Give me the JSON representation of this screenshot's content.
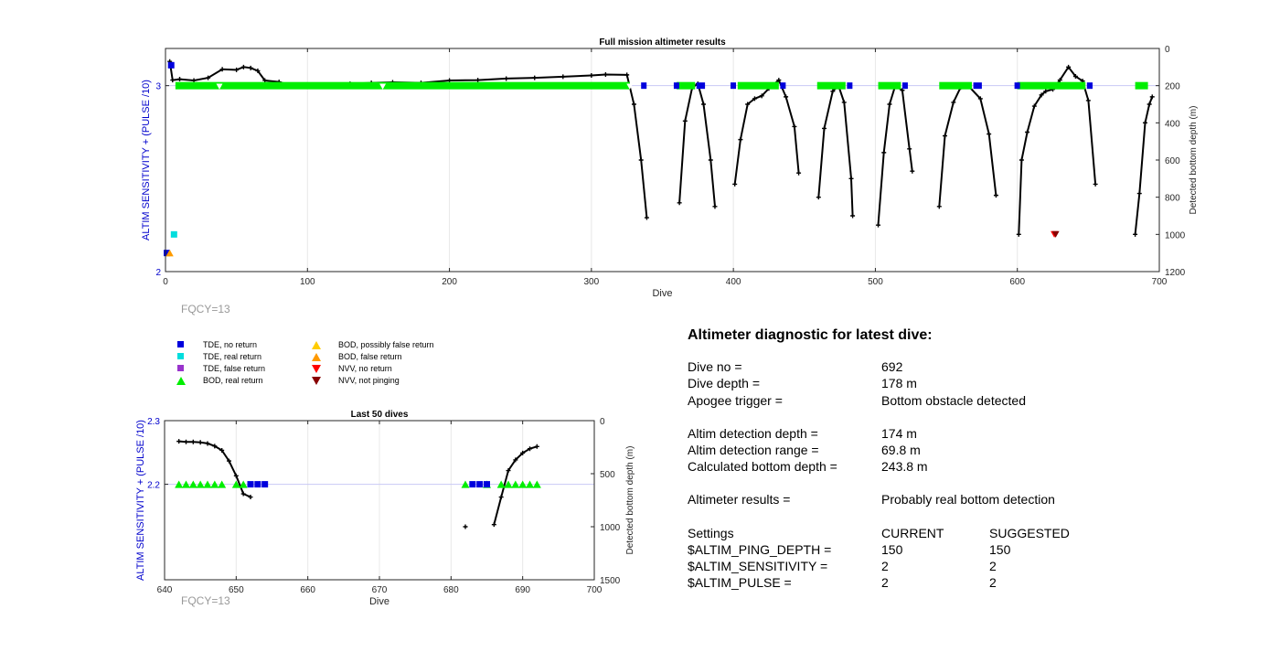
{
  "colors": {
    "tde_no_return": "#0000dd",
    "tde_real_return": "#00dddd",
    "tde_false_return": "#9933cc",
    "bod_real_return": "#00ee00",
    "bod_possibly_false": "#ffcc00",
    "bod_false_return": "#ff9900",
    "nvv_no_return": "#ff0000",
    "nvv_not_pinging": "#880000",
    "left_axis": "#0000cc",
    "fqcy": "#999999"
  },
  "fqcy_label": "FQCY=13",
  "legend": [
    {
      "label": "TDE, no return",
      "shape": "square",
      "color_key": "tde_no_return"
    },
    {
      "label": "TDE, real return",
      "shape": "square",
      "color_key": "tde_real_return"
    },
    {
      "label": "TDE, false return",
      "shape": "square",
      "color_key": "tde_false_return"
    },
    {
      "label": "BOD, real return",
      "shape": "triangle-up",
      "color_key": "bod_real_return"
    },
    {
      "label": "BOD, possibly false return",
      "shape": "triangle-up",
      "color_key": "bod_possibly_false"
    },
    {
      "label": "BOD, false return",
      "shape": "triangle-up",
      "color_key": "bod_false_return"
    },
    {
      "label": "NVV, no return",
      "shape": "triangle-down",
      "color_key": "nvv_no_return"
    },
    {
      "label": "NVV, not pinging",
      "shape": "triangle-down",
      "color_key": "nvv_not_pinging"
    }
  ],
  "diagnostic": {
    "title": "Altimeter diagnostic for latest dive:",
    "dive_no_label": "Dive no =",
    "dive_no": "692",
    "dive_depth_label": "Dive depth =",
    "dive_depth": "178 m",
    "apogee_label": "Apogee trigger =",
    "apogee": "Bottom obstacle detected",
    "altim_depth_label": "Altim detection depth =",
    "altim_depth": "174 m",
    "altim_range_label": "Altim detection range =",
    "altim_range": "69.8 m",
    "calc_depth_label": "Calculated bottom depth =",
    "calc_depth": "243.8 m",
    "results_label": "Altimeter results =",
    "results": "Probably real bottom detection",
    "settings_label": "Settings",
    "current_label": "CURRENT",
    "suggested_label": "SUGGESTED",
    "settings": [
      {
        "name": "$ALTIM_PING_DEPTH =",
        "current": "150",
        "suggested": "150"
      },
      {
        "name": "$ALTIM_SENSITIVITY =",
        "current": "2",
        "suggested": "2"
      },
      {
        "name": "$ALTIM_PULSE =",
        "current": "2",
        "suggested": "2"
      }
    ]
  },
  "chart_data": [
    {
      "type": "scatter",
      "title": "Full mission altimeter results",
      "xlabel": "Dive",
      "ylabel": "ALTIM SENSITIVITY + (PULSE /10)",
      "y2label": "Detected bottom depth (m)",
      "xlim": [
        0,
        700
      ],
      "ylim": [
        2,
        3.2
      ],
      "y2lim": [
        1200,
        0
      ],
      "xticks": [
        0,
        100,
        200,
        300,
        400,
        500,
        600,
        700
      ],
      "yticks": [
        2,
        3
      ],
      "y2ticks": [
        0,
        200,
        400,
        600,
        800,
        1000,
        1200
      ],
      "reference_line_y": 3,
      "bod_real_runs": [
        [
          7,
          327
        ],
        [
          360,
          373
        ],
        [
          403,
          432
        ],
        [
          459,
          479
        ],
        [
          502,
          518
        ],
        [
          545,
          568
        ],
        [
          600,
          648
        ],
        [
          683,
          692
        ]
      ],
      "bod_gaps": [
        38,
        153,
        327
      ],
      "tde_no_return_runs": [
        [
          335,
          338
        ],
        [
          358,
          360
        ],
        [
          374,
          380
        ],
        [
          398,
          401
        ],
        [
          433,
          436
        ],
        [
          480,
          483
        ],
        [
          519,
          522
        ],
        [
          569,
          575
        ],
        [
          598,
          600
        ],
        [
          649,
          653
        ]
      ],
      "special_markers": [
        {
          "category": "tde_no_return",
          "x": 4,
          "y": 3.11
        },
        {
          "category": "tde_no_return",
          "x": 1,
          "y": 2.1
        },
        {
          "category": "tde_real_return",
          "x": 6,
          "y": 2.2
        },
        {
          "category": "bod_possibly_false",
          "x": 3,
          "y": 2.1
        },
        {
          "category": "bod_false_return",
          "x": 3,
          "y": 2.1
        },
        {
          "category": "nvv_no_return",
          "x": 626,
          "y": 2.2
        },
        {
          "category": "nvv_not_pinging",
          "x": 627,
          "y": 2.2
        }
      ],
      "depth_segments": [
        [
          [
            3,
            70
          ],
          [
            5,
            170
          ],
          [
            10,
            165
          ],
          [
            20,
            172
          ],
          [
            30,
            158
          ],
          [
            40,
            112
          ],
          [
            50,
            115
          ],
          [
            55,
            100
          ],
          [
            60,
            105
          ],
          [
            65,
            120
          ],
          [
            70,
            172
          ],
          [
            80,
            180
          ],
          [
            90,
            202
          ],
          [
            100,
            198
          ],
          [
            115,
            195
          ],
          [
            130,
            190
          ],
          [
            145,
            185
          ],
          [
            160,
            182
          ],
          [
            180,
            185
          ],
          [
            200,
            172
          ],
          [
            220,
            170
          ],
          [
            240,
            162
          ],
          [
            260,
            158
          ],
          [
            280,
            152
          ],
          [
            300,
            145
          ],
          [
            310,
            140
          ],
          [
            325,
            142
          ],
          [
            330,
            300
          ],
          [
            335,
            600
          ],
          [
            339,
            910
          ]
        ],
        [
          [
            362,
            830
          ],
          [
            366,
            390
          ],
          [
            371,
            210
          ],
          [
            375,
            190
          ],
          [
            379,
            300
          ],
          [
            384,
            600
          ],
          [
            387,
            850
          ]
        ],
        [
          [
            401,
            730
          ],
          [
            405,
            490
          ],
          [
            410,
            300
          ],
          [
            415,
            270
          ],
          [
            420,
            255
          ],
          [
            425,
            215
          ],
          [
            432,
            170
          ],
          [
            437,
            260
          ],
          [
            443,
            420
          ],
          [
            446,
            670
          ]
        ],
        [
          [
            460,
            800
          ],
          [
            464,
            430
          ],
          [
            470,
            230
          ],
          [
            474,
            200
          ],
          [
            478,
            290
          ],
          [
            483,
            700
          ],
          [
            484,
            900
          ]
        ],
        [
          [
            502,
            950
          ],
          [
            506,
            560
          ],
          [
            510,
            300
          ],
          [
            514,
            200
          ],
          [
            519,
            225
          ],
          [
            524,
            540
          ],
          [
            526,
            660
          ]
        ],
        [
          [
            545,
            850
          ],
          [
            549,
            470
          ],
          [
            555,
            290
          ],
          [
            560,
            210
          ],
          [
            566,
            205
          ],
          [
            574,
            270
          ],
          [
            580,
            460
          ],
          [
            585,
            790
          ]
        ],
        [
          [
            601,
            1000
          ],
          [
            603,
            600
          ],
          [
            607,
            450
          ],
          [
            612,
            310
          ],
          [
            617,
            250
          ],
          [
            620,
            230
          ],
          [
            625,
            220
          ],
          [
            630,
            170
          ],
          [
            636,
            100
          ],
          [
            641,
            150
          ],
          [
            646,
            175
          ],
          [
            650,
            280
          ],
          [
            655,
            730
          ]
        ],
        [
          [
            683,
            1000
          ],
          [
            686,
            780
          ],
          [
            690,
            400
          ],
          [
            693,
            300
          ],
          [
            695,
            260
          ]
        ]
      ]
    },
    {
      "type": "scatter",
      "title": "Last 50 dives",
      "xlabel": "Dive",
      "ylabel": "ALTIM SENSITIVITY + (PULSE /10)",
      "y2label": "Detected bottom depth (m)",
      "xlim": [
        640,
        700
      ],
      "ylim": [
        2.05,
        2.3
      ],
      "y2lim": [
        1500,
        0
      ],
      "xticks": [
        640,
        650,
        660,
        670,
        680,
        690,
        700
      ],
      "yticks": [
        2.2,
        2.3
      ],
      "y2ticks": [
        0,
        500,
        1000,
        1500
      ],
      "reference_line_y": 2.2,
      "bod_real_x": [
        642,
        643,
        644,
        645,
        646,
        647,
        648,
        650,
        651,
        682,
        685,
        687,
        688,
        689,
        690,
        691,
        692
      ],
      "tde_no_return_x": [
        652,
        653,
        654,
        683,
        684,
        685
      ],
      "depth_segments": [
        [
          [
            642,
            195
          ],
          [
            643,
            200
          ],
          [
            644,
            200
          ],
          [
            645,
            205
          ],
          [
            646,
            215
          ],
          [
            647,
            240
          ],
          [
            648,
            280
          ],
          [
            649,
            380
          ],
          [
            650,
            520
          ],
          [
            651,
            690
          ],
          [
            652,
            720
          ]
        ],
        [
          [
            682,
            1000
          ]
        ],
        [
          [
            686,
            980
          ],
          [
            687,
            720
          ],
          [
            688,
            470
          ],
          [
            689,
            370
          ],
          [
            690,
            305
          ],
          [
            691,
            265
          ],
          [
            692,
            244
          ]
        ]
      ]
    }
  ]
}
